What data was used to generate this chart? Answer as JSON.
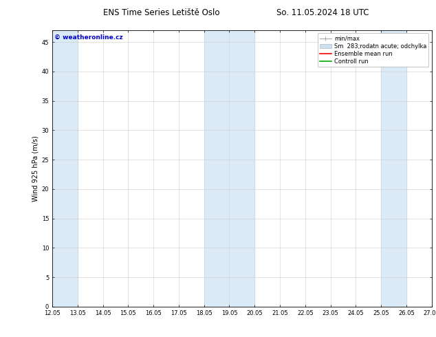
{
  "title_left": "ENS Time Series Letiště Oslo",
  "title_right": "So. 11.05.2024 18 UTC",
  "ylabel": "Wind 925 hPa (m/s)",
  "watermark": "© weatheronline.cz",
  "watermark_color": "#0000cc",
  "x_ticks": [
    12.05,
    13.05,
    14.05,
    15.05,
    16.05,
    17.05,
    18.05,
    19.05,
    20.05,
    21.05,
    22.05,
    23.05,
    24.05,
    25.05,
    26.05,
    27.05
  ],
  "x_start": 12.05,
  "x_end": 27.05,
  "y_min": 0,
  "y_max": 47,
  "y_ticks": [
    0,
    5,
    10,
    15,
    20,
    25,
    30,
    35,
    40,
    45
  ],
  "shaded_bands": [
    {
      "x_start": 12.05,
      "x_end": 13.05
    },
    {
      "x_start": 18.05,
      "x_end": 20.05
    },
    {
      "x_start": 25.05,
      "x_end": 26.05
    }
  ],
  "shade_color": "#daeaf7",
  "legend_labels": [
    "min/max",
    "Sm  283;rodatn acute; odchylka",
    "Ensemble mean run",
    "Controll run"
  ],
  "minmax_color": "#aaaaaa",
  "sm_color": "#cce0f0",
  "ens_color": "#ff0000",
  "ctrl_color": "#00aa00",
  "grid_color": "#cccccc",
  "title_fontsize": 8.5,
  "tick_fontsize": 6,
  "ylabel_fontsize": 7,
  "legend_fontsize": 6,
  "watermark_fontsize": 6.5
}
